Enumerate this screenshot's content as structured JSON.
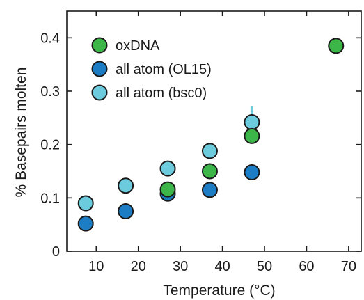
{
  "chart_data": {
    "type": "scatter",
    "xlabel": "Temperature (°C)",
    "ylabel": "% Basepairs molten",
    "xlim": [
      3,
      73
    ],
    "ylim": [
      0,
      0.45
    ],
    "xticks": [
      10,
      20,
      30,
      40,
      50,
      60,
      70
    ],
    "yticks": [
      0,
      0.1,
      0.2,
      0.3,
      0.4
    ],
    "ytick_labels": [
      "0",
      "0.1",
      "0.2",
      "0.3",
      "0.4"
    ],
    "grid": false,
    "legend_position": "top-left",
    "series": [
      {
        "name": "oxDNA",
        "color": "#3db649",
        "x": [
          27,
          37,
          47,
          67
        ],
        "y": [
          0.116,
          0.15,
          0.216,
          0.385
        ]
      },
      {
        "name": "all atom (OL15)",
        "color": "#1d7dc4",
        "x": [
          7.5,
          17,
          27,
          37,
          47
        ],
        "y": [
          0.052,
          0.075,
          0.108,
          0.115,
          0.148
        ]
      },
      {
        "name": "all atom (bsc0)",
        "color": "#6ccbdc",
        "x": [
          7.5,
          17,
          27,
          37,
          47
        ],
        "y": [
          0.09,
          0.123,
          0.155,
          0.188,
          0.242
        ],
        "errors": [
          0,
          0,
          0,
          0,
          0.03
        ]
      }
    ]
  }
}
